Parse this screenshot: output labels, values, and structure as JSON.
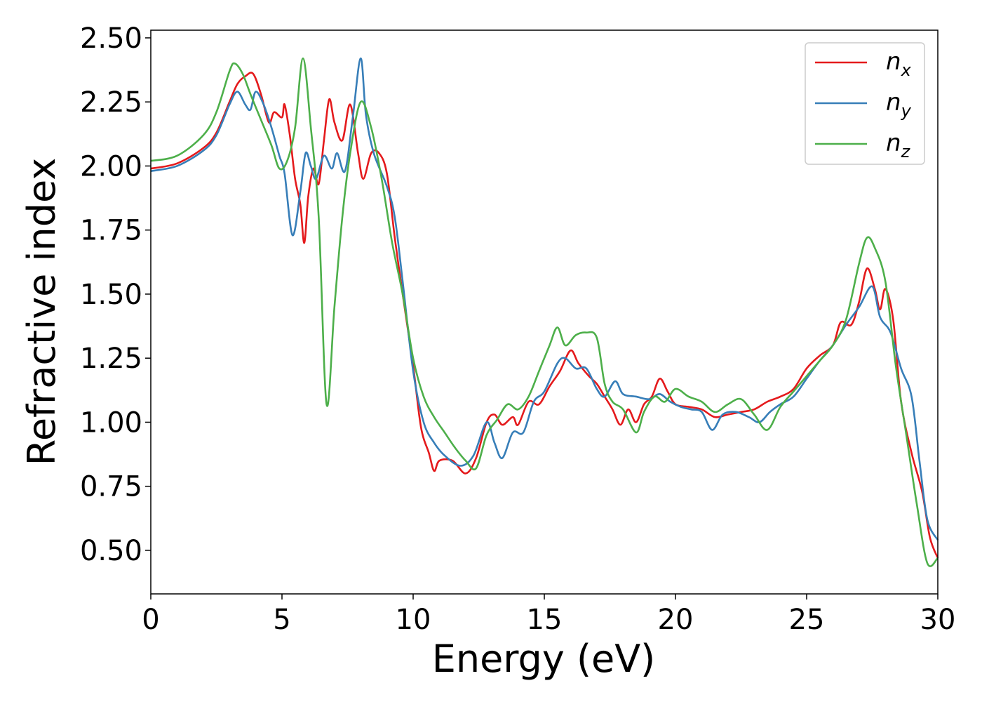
{
  "chart_data": {
    "type": "line",
    "xlabel": "Energy (eV)",
    "ylabel": "Refractive index",
    "xlim": [
      0,
      30
    ],
    "ylim": [
      0.33,
      2.53
    ],
    "xticks": [
      0,
      5,
      10,
      15,
      20,
      25,
      30
    ],
    "xtick_labels": [
      "0",
      "5",
      "10",
      "15",
      "20",
      "25",
      "30"
    ],
    "yticks": [
      0.5,
      0.75,
      1.0,
      1.25,
      1.5,
      1.75,
      2.0,
      2.25,
      2.5
    ],
    "ytick_labels": [
      "0.50",
      "0.75",
      "1.00",
      "1.25",
      "1.50",
      "1.75",
      "2.00",
      "2.25",
      "2.50"
    ],
    "grid": false,
    "legend_position": "top-right",
    "series": [
      {
        "name": "n",
        "subscript": "x",
        "color": "#e41a1c",
        "points": [
          [
            0,
            1.99
          ],
          [
            1,
            2.01
          ],
          [
            2,
            2.07
          ],
          [
            2.5,
            2.13
          ],
          [
            3,
            2.25
          ],
          [
            3.3,
            2.32
          ],
          [
            3.6,
            2.35
          ],
          [
            3.9,
            2.36
          ],
          [
            4.2,
            2.28
          ],
          [
            4.5,
            2.17
          ],
          [
            4.7,
            2.21
          ],
          [
            5.0,
            2.19
          ],
          [
            5.1,
            2.24
          ],
          [
            5.3,
            2.12
          ],
          [
            5.5,
            1.95
          ],
          [
            5.7,
            1.85
          ],
          [
            5.85,
            1.7
          ],
          [
            6.0,
            1.88
          ],
          [
            6.2,
            1.99
          ],
          [
            6.4,
            1.93
          ],
          [
            6.6,
            2.1
          ],
          [
            6.8,
            2.26
          ],
          [
            7.0,
            2.17
          ],
          [
            7.3,
            2.1
          ],
          [
            7.6,
            2.24
          ],
          [
            7.9,
            2.05
          ],
          [
            8.1,
            1.95
          ],
          [
            8.4,
            2.05
          ],
          [
            8.7,
            2.05
          ],
          [
            9.0,
            1.97
          ],
          [
            9.3,
            1.72
          ],
          [
            9.6,
            1.5
          ],
          [
            10.0,
            1.22
          ],
          [
            10.3,
            0.98
          ],
          [
            10.6,
            0.88
          ],
          [
            10.8,
            0.81
          ],
          [
            11.0,
            0.85
          ],
          [
            11.5,
            0.85
          ],
          [
            12.0,
            0.8
          ],
          [
            12.4,
            0.86
          ],
          [
            12.8,
            1.0
          ],
          [
            13.1,
            1.03
          ],
          [
            13.4,
            0.99
          ],
          [
            13.8,
            1.02
          ],
          [
            14.0,
            0.99
          ],
          [
            14.4,
            1.08
          ],
          [
            14.8,
            1.07
          ],
          [
            15.2,
            1.14
          ],
          [
            15.6,
            1.2
          ],
          [
            16.0,
            1.28
          ],
          [
            16.3,
            1.23
          ],
          [
            16.7,
            1.18
          ],
          [
            17.0,
            1.15
          ],
          [
            17.3,
            1.1
          ],
          [
            17.6,
            1.05
          ],
          [
            17.9,
            0.99
          ],
          [
            18.2,
            1.05
          ],
          [
            18.5,
            1.0
          ],
          [
            18.8,
            1.07
          ],
          [
            19.1,
            1.1
          ],
          [
            19.4,
            1.17
          ],
          [
            19.7,
            1.12
          ],
          [
            20.0,
            1.07
          ],
          [
            20.5,
            1.06
          ],
          [
            21.0,
            1.05
          ],
          [
            21.5,
            1.02
          ],
          [
            22.0,
            1.03
          ],
          [
            22.5,
            1.04
          ],
          [
            23.0,
            1.05
          ],
          [
            23.5,
            1.08
          ],
          [
            24.0,
            1.1
          ],
          [
            24.5,
            1.13
          ],
          [
            25.0,
            1.21
          ],
          [
            25.5,
            1.26
          ],
          [
            26.0,
            1.3
          ],
          [
            26.3,
            1.39
          ],
          [
            26.7,
            1.38
          ],
          [
            27.0,
            1.47
          ],
          [
            27.3,
            1.6
          ],
          [
            27.6,
            1.52
          ],
          [
            27.8,
            1.44
          ],
          [
            28.0,
            1.52
          ],
          [
            28.3,
            1.4
          ],
          [
            28.6,
            1.08
          ],
          [
            29.0,
            0.88
          ],
          [
            29.4,
            0.73
          ],
          [
            29.7,
            0.55
          ],
          [
            30.0,
            0.47
          ]
        ]
      },
      {
        "name": "n",
        "subscript": "y",
        "color": "#377eb8",
        "points": [
          [
            0,
            1.98
          ],
          [
            1,
            2.0
          ],
          [
            2,
            2.06
          ],
          [
            2.5,
            2.12
          ],
          [
            3,
            2.24
          ],
          [
            3.3,
            2.29
          ],
          [
            3.6,
            2.24
          ],
          [
            3.8,
            2.22
          ],
          [
            4.0,
            2.29
          ],
          [
            4.3,
            2.24
          ],
          [
            4.6,
            2.15
          ],
          [
            4.9,
            2.04
          ],
          [
            5.1,
            1.97
          ],
          [
            5.4,
            1.73
          ],
          [
            5.7,
            1.9
          ],
          [
            5.9,
            2.05
          ],
          [
            6.1,
            2.0
          ],
          [
            6.3,
            1.95
          ],
          [
            6.6,
            2.04
          ],
          [
            6.9,
            1.99
          ],
          [
            7.1,
            2.05
          ],
          [
            7.4,
            1.98
          ],
          [
            7.7,
            2.19
          ],
          [
            8.0,
            2.42
          ],
          [
            8.2,
            2.2
          ],
          [
            8.5,
            2.05
          ],
          [
            9.0,
            1.92
          ],
          [
            9.3,
            1.8
          ],
          [
            9.6,
            1.55
          ],
          [
            10.0,
            1.2
          ],
          [
            10.4,
            1.0
          ],
          [
            10.8,
            0.92
          ],
          [
            11.2,
            0.87
          ],
          [
            11.8,
            0.83
          ],
          [
            12.3,
            0.87
          ],
          [
            12.8,
            1.0
          ],
          [
            13.1,
            0.92
          ],
          [
            13.4,
            0.86
          ],
          [
            13.8,
            0.96
          ],
          [
            14.2,
            0.96
          ],
          [
            14.6,
            1.08
          ],
          [
            15.0,
            1.12
          ],
          [
            15.5,
            1.23
          ],
          [
            15.8,
            1.25
          ],
          [
            16.2,
            1.21
          ],
          [
            16.6,
            1.21
          ],
          [
            17.0,
            1.13
          ],
          [
            17.3,
            1.1
          ],
          [
            17.7,
            1.16
          ],
          [
            18.0,
            1.11
          ],
          [
            18.5,
            1.1
          ],
          [
            19.0,
            1.09
          ],
          [
            19.4,
            1.11
          ],
          [
            19.8,
            1.08
          ],
          [
            20.2,
            1.06
          ],
          [
            20.6,
            1.05
          ],
          [
            21.0,
            1.04
          ],
          [
            21.4,
            0.97
          ],
          [
            21.8,
            1.03
          ],
          [
            22.3,
            1.04
          ],
          [
            22.8,
            1.02
          ],
          [
            23.2,
            1.0
          ],
          [
            23.6,
            1.04
          ],
          [
            24.0,
            1.07
          ],
          [
            24.5,
            1.1
          ],
          [
            25.0,
            1.17
          ],
          [
            25.5,
            1.24
          ],
          [
            26.0,
            1.3
          ],
          [
            26.5,
            1.38
          ],
          [
            27.0,
            1.45
          ],
          [
            27.5,
            1.53
          ],
          [
            27.8,
            1.41
          ],
          [
            28.2,
            1.35
          ],
          [
            28.6,
            1.21
          ],
          [
            29.0,
            1.1
          ],
          [
            29.3,
            0.85
          ],
          [
            29.6,
            0.62
          ],
          [
            30.0,
            0.54
          ]
        ]
      },
      {
        "name": "n",
        "subscript": "z",
        "color": "#4daf4a",
        "points": [
          [
            0,
            2.02
          ],
          [
            1,
            2.04
          ],
          [
            2,
            2.12
          ],
          [
            2.5,
            2.21
          ],
          [
            3,
            2.37
          ],
          [
            3.2,
            2.4
          ],
          [
            3.5,
            2.36
          ],
          [
            3.8,
            2.28
          ],
          [
            4.2,
            2.18
          ],
          [
            4.6,
            2.08
          ],
          [
            4.9,
            1.99
          ],
          [
            5.2,
            2.02
          ],
          [
            5.5,
            2.15
          ],
          [
            5.8,
            2.42
          ],
          [
            6.1,
            2.15
          ],
          [
            6.4,
            1.8
          ],
          [
            6.7,
            1.07
          ],
          [
            7.0,
            1.45
          ],
          [
            7.3,
            1.8
          ],
          [
            7.6,
            2.05
          ],
          [
            8.0,
            2.25
          ],
          [
            8.4,
            2.15
          ],
          [
            8.8,
            1.95
          ],
          [
            9.2,
            1.7
          ],
          [
            9.6,
            1.5
          ],
          [
            10.0,
            1.25
          ],
          [
            10.4,
            1.1
          ],
          [
            10.8,
            1.02
          ],
          [
            11.2,
            0.96
          ],
          [
            11.6,
            0.9
          ],
          [
            12.0,
            0.85
          ],
          [
            12.4,
            0.82
          ],
          [
            12.8,
            0.95
          ],
          [
            13.2,
            1.01
          ],
          [
            13.6,
            1.07
          ],
          [
            14.0,
            1.05
          ],
          [
            14.4,
            1.1
          ],
          [
            14.8,
            1.2
          ],
          [
            15.2,
            1.3
          ],
          [
            15.5,
            1.37
          ],
          [
            15.8,
            1.3
          ],
          [
            16.2,
            1.34
          ],
          [
            16.6,
            1.35
          ],
          [
            17.0,
            1.33
          ],
          [
            17.3,
            1.15
          ],
          [
            17.6,
            1.08
          ],
          [
            18.0,
            1.05
          ],
          [
            18.5,
            0.96
          ],
          [
            18.8,
            1.04
          ],
          [
            19.2,
            1.1
          ],
          [
            19.6,
            1.08
          ],
          [
            20.0,
            1.13
          ],
          [
            20.5,
            1.1
          ],
          [
            21.0,
            1.08
          ],
          [
            21.5,
            1.04
          ],
          [
            22.0,
            1.07
          ],
          [
            22.5,
            1.09
          ],
          [
            23.0,
            1.03
          ],
          [
            23.5,
            0.97
          ],
          [
            24.0,
            1.06
          ],
          [
            24.5,
            1.12
          ],
          [
            25.0,
            1.18
          ],
          [
            25.5,
            1.24
          ],
          [
            26.0,
            1.3
          ],
          [
            26.5,
            1.4
          ],
          [
            27.0,
            1.62
          ],
          [
            27.3,
            1.72
          ],
          [
            27.6,
            1.68
          ],
          [
            28.0,
            1.55
          ],
          [
            28.4,
            1.22
          ],
          [
            28.8,
            0.95
          ],
          [
            29.2,
            0.68
          ],
          [
            29.6,
            0.45
          ],
          [
            30.0,
            0.47
          ]
        ]
      }
    ]
  }
}
